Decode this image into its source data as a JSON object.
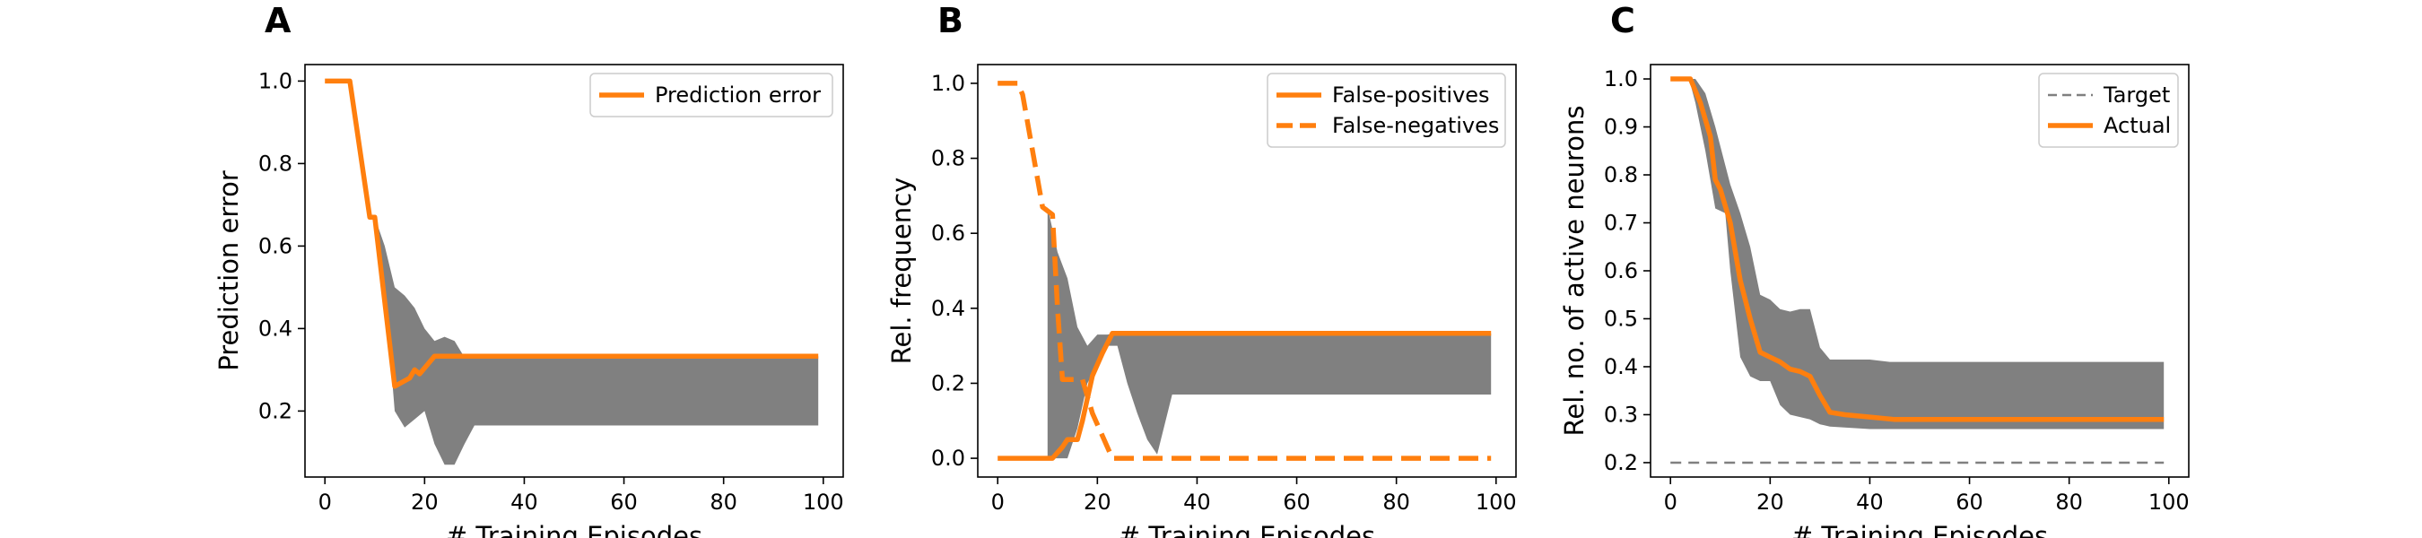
{
  "colors": {
    "orange": "#ff7f0e",
    "band": "#808080",
    "target": "#808080"
  },
  "chart_data": [
    {
      "type": "line",
      "panel_label": "A",
      "xlabel": "# Training Episodes",
      "ylabel": "Prediction error",
      "xlim": [
        -4,
        104
      ],
      "ylim": [
        0.04,
        1.04
      ],
      "xticks": [
        0,
        20,
        40,
        60,
        80,
        100
      ],
      "yticks": [
        0.2,
        0.4,
        0.6,
        0.8,
        1.0
      ],
      "ytick_labels": [
        "0.2",
        "0.4",
        "0.6",
        "0.8",
        "1.0"
      ],
      "grid": false,
      "legend": {
        "position": "top-right",
        "entries": [
          "Prediction error"
        ]
      },
      "series": [
        {
          "name": "Prediction error",
          "style": "solid",
          "x": [
            0,
            5,
            9,
            10,
            14,
            17,
            18,
            19,
            22,
            99
          ],
          "y": [
            1.0,
            1.0,
            0.67,
            0.67,
            0.26,
            0.28,
            0.3,
            0.29,
            0.333,
            0.333
          ]
        }
      ],
      "band": {
        "x": [
          10,
          12,
          14,
          16,
          18,
          20,
          22,
          24,
          26,
          28,
          30,
          99
        ],
        "lower": [
          0.66,
          0.5,
          0.2,
          0.16,
          0.18,
          0.2,
          0.12,
          0.07,
          0.07,
          0.12,
          0.165,
          0.165
        ],
        "upper": [
          0.67,
          0.6,
          0.5,
          0.48,
          0.45,
          0.4,
          0.37,
          0.38,
          0.37,
          0.33,
          0.333,
          0.333
        ]
      }
    },
    {
      "type": "line",
      "panel_label": "B",
      "xlabel": "# Training Episodes",
      "ylabel": "Rel. frequency",
      "xlim": [
        -4,
        104
      ],
      "ylim": [
        -0.05,
        1.05
      ],
      "xticks": [
        0,
        20,
        40,
        60,
        80,
        100
      ],
      "yticks": [
        0.0,
        0.2,
        0.4,
        0.6,
        0.8,
        1.0
      ],
      "ytick_labels": [
        "0.0",
        "0.2",
        "0.4",
        "0.6",
        "0.8",
        "1.0"
      ],
      "grid": false,
      "legend": {
        "position": "top-right",
        "entries": [
          "False-positives",
          "False-negatives"
        ]
      },
      "series": [
        {
          "name": "False-positives",
          "style": "solid",
          "x": [
            0,
            11,
            13,
            14,
            16,
            17,
            19,
            21,
            23,
            99
          ],
          "y": [
            0.0,
            0.0,
            0.03,
            0.05,
            0.05,
            0.1,
            0.22,
            0.28,
            0.333,
            0.333
          ]
        },
        {
          "name": "False-negatives",
          "style": "dashed",
          "x": [
            0,
            4,
            5,
            9,
            11,
            12,
            13,
            14,
            17,
            19,
            23,
            25,
            99
          ],
          "y": [
            1.0,
            1.0,
            0.97,
            0.67,
            0.65,
            0.4,
            0.21,
            0.21,
            0.21,
            0.12,
            0.0,
            0.0,
            0.0
          ]
        }
      ],
      "band": {
        "x": [
          10,
          12,
          14,
          16,
          18,
          20,
          22,
          24,
          26,
          28,
          30,
          32,
          35,
          99
        ],
        "lower": [
          0.0,
          0.0,
          0.0,
          0.08,
          0.2,
          0.25,
          0.3,
          0.3,
          0.2,
          0.12,
          0.05,
          0.01,
          0.17,
          0.17
        ],
        "upper": [
          0.67,
          0.55,
          0.48,
          0.35,
          0.3,
          0.33,
          0.33,
          0.333,
          0.333,
          0.333,
          0.333,
          0.333,
          0.333,
          0.333
        ]
      }
    },
    {
      "type": "line",
      "panel_label": "C",
      "xlabel": "# Training Episodes",
      "ylabel": "Rel. no. of active neurons",
      "xlim": [
        -4,
        104
      ],
      "ylim": [
        0.17,
        1.03
      ],
      "xticks": [
        0,
        20,
        40,
        60,
        80,
        100
      ],
      "yticks": [
        0.2,
        0.3,
        0.4,
        0.5,
        0.6,
        0.7,
        0.8,
        0.9,
        1.0
      ],
      "ytick_labels": [
        "0.2",
        "0.3",
        "0.4",
        "0.5",
        "0.6",
        "0.7",
        "0.8",
        "0.9",
        "1.0"
      ],
      "grid": false,
      "legend": {
        "position": "top-right",
        "entries": [
          "Target",
          "Actual"
        ]
      },
      "series": [
        {
          "name": "Target",
          "style": "dashed-thin",
          "x": [
            0,
            99
          ],
          "y": [
            0.2,
            0.2
          ]
        },
        {
          "name": "Actual",
          "style": "solid",
          "x": [
            0,
            4,
            6,
            8,
            9,
            10,
            12,
            14,
            16,
            18,
            20,
            22,
            24,
            26,
            28,
            30,
            32,
            35,
            40,
            45,
            99
          ],
          "y": [
            1.0,
            1.0,
            0.95,
            0.88,
            0.79,
            0.77,
            0.7,
            0.58,
            0.5,
            0.43,
            0.42,
            0.41,
            0.395,
            0.39,
            0.38,
            0.34,
            0.305,
            0.3,
            0.295,
            0.29,
            0.29
          ]
        }
      ],
      "band": {
        "x": [
          4,
          5,
          7,
          9,
          11,
          12,
          14,
          16,
          18,
          20,
          22,
          24,
          26,
          28,
          30,
          32,
          40,
          44,
          99
        ],
        "lower": [
          0.99,
          0.95,
          0.85,
          0.73,
          0.72,
          0.6,
          0.42,
          0.38,
          0.37,
          0.37,
          0.32,
          0.3,
          0.295,
          0.29,
          0.28,
          0.275,
          0.27,
          0.27,
          0.27
        ],
        "upper": [
          1.0,
          1.0,
          0.97,
          0.9,
          0.82,
          0.78,
          0.72,
          0.65,
          0.55,
          0.54,
          0.52,
          0.515,
          0.52,
          0.52,
          0.44,
          0.415,
          0.415,
          0.41,
          0.41
        ]
      }
    }
  ]
}
